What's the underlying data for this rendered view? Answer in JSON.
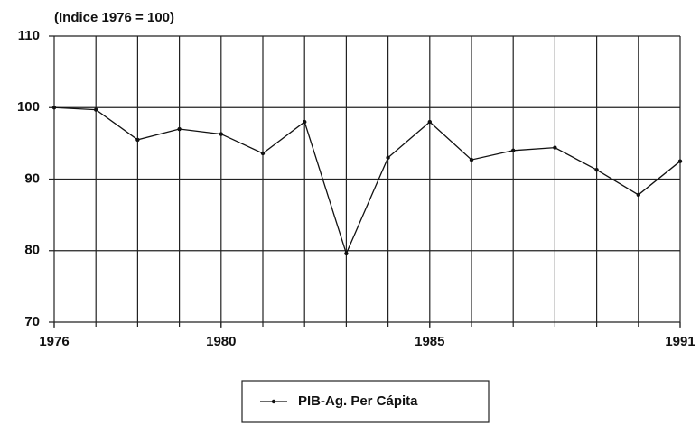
{
  "chart_data": {
    "type": "line",
    "y_label": "(Indice 1976 = 100)",
    "x": [
      1976,
      1977,
      1978,
      1979,
      1980,
      1981,
      1982,
      1983,
      1984,
      1985,
      1986,
      1987,
      1988,
      1989,
      1990,
      1991
    ],
    "series": [
      {
        "name": "PIB-Ag. Per Cápita",
        "color": "#111111",
        "values": [
          100,
          99.7,
          95.5,
          97,
          96.3,
          93.6,
          98,
          79.6,
          93,
          98,
          92.7,
          94,
          94.4,
          91.3,
          87.8,
          92.5
        ]
      }
    ],
    "xlim": [
      1976,
      1991
    ],
    "xticks": [
      1976,
      1980,
      1985,
      1991
    ],
    "ylim": [
      70,
      110
    ],
    "yticks": [
      70,
      80,
      90,
      100,
      110
    ],
    "grid": true
  }
}
